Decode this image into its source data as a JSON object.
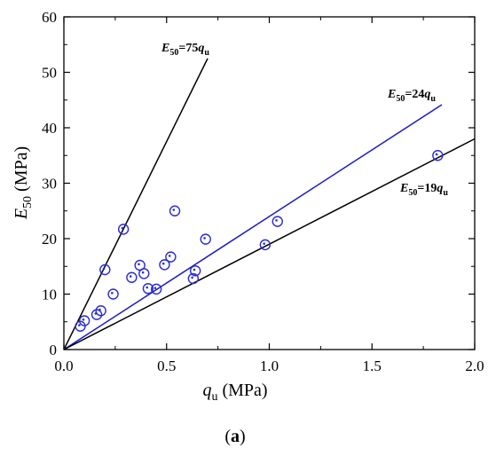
{
  "chart_data": {
    "type": "scatter",
    "panel_label": "a",
    "xlabel": {
      "var": "q",
      "sub": "u",
      "unit": " (MPa)"
    },
    "ylabel": {
      "var": "E",
      "sub": "50",
      "unit": " (MPa)"
    },
    "xlim": [
      0,
      2.0
    ],
    "ylim": [
      0,
      60
    ],
    "x_ticks": [
      "0.0",
      "0.5",
      "1.0",
      "1.5",
      "2.0"
    ],
    "y_ticks": [
      "0",
      "10",
      "20",
      "30",
      "40",
      "50",
      "60"
    ],
    "grid": false,
    "points": [
      {
        "x": 0.08,
        "y": 4.2
      },
      {
        "x": 0.1,
        "y": 5.2
      },
      {
        "x": 0.16,
        "y": 6.3
      },
      {
        "x": 0.18,
        "y": 7.0
      },
      {
        "x": 0.2,
        "y": 14.4
      },
      {
        "x": 0.24,
        "y": 10.0
      },
      {
        "x": 0.29,
        "y": 21.7
      },
      {
        "x": 0.33,
        "y": 13.0
      },
      {
        "x": 0.37,
        "y": 15.2
      },
      {
        "x": 0.39,
        "y": 13.7
      },
      {
        "x": 0.41,
        "y": 11.0
      },
      {
        "x": 0.45,
        "y": 10.9
      },
      {
        "x": 0.49,
        "y": 15.3
      },
      {
        "x": 0.52,
        "y": 16.7
      },
      {
        "x": 0.54,
        "y": 25.0
      },
      {
        "x": 0.63,
        "y": 12.8
      },
      {
        "x": 0.64,
        "y": 14.2
      },
      {
        "x": 0.69,
        "y": 19.9
      },
      {
        "x": 0.98,
        "y": 18.9
      },
      {
        "x": 1.04,
        "y": 23.1
      },
      {
        "x": 1.82,
        "y": 35.0
      }
    ],
    "point_color": "#2b2bd6",
    "fit_lines": [
      {
        "label": {
          "lhs": "E",
          "lhs_sub": "50",
          "coef": "=75",
          "rhs": "q",
          "rhs_sub": "u"
        },
        "slope": 75,
        "x_end": 0.7,
        "color": "#000000"
      },
      {
        "label": {
          "lhs": "E",
          "lhs_sub": "50",
          "coef": "=24",
          "rhs": "q",
          "rhs_sub": "u"
        },
        "slope": 24,
        "x_end": 1.84,
        "color": "#1a1acc"
      },
      {
        "label": {
          "lhs": "E",
          "lhs_sub": "50",
          "coef": "=19",
          "rhs": "q",
          "rhs_sub": "u"
        },
        "slope": 19,
        "x_end": 2.0,
        "color": "#000000"
      }
    ]
  }
}
